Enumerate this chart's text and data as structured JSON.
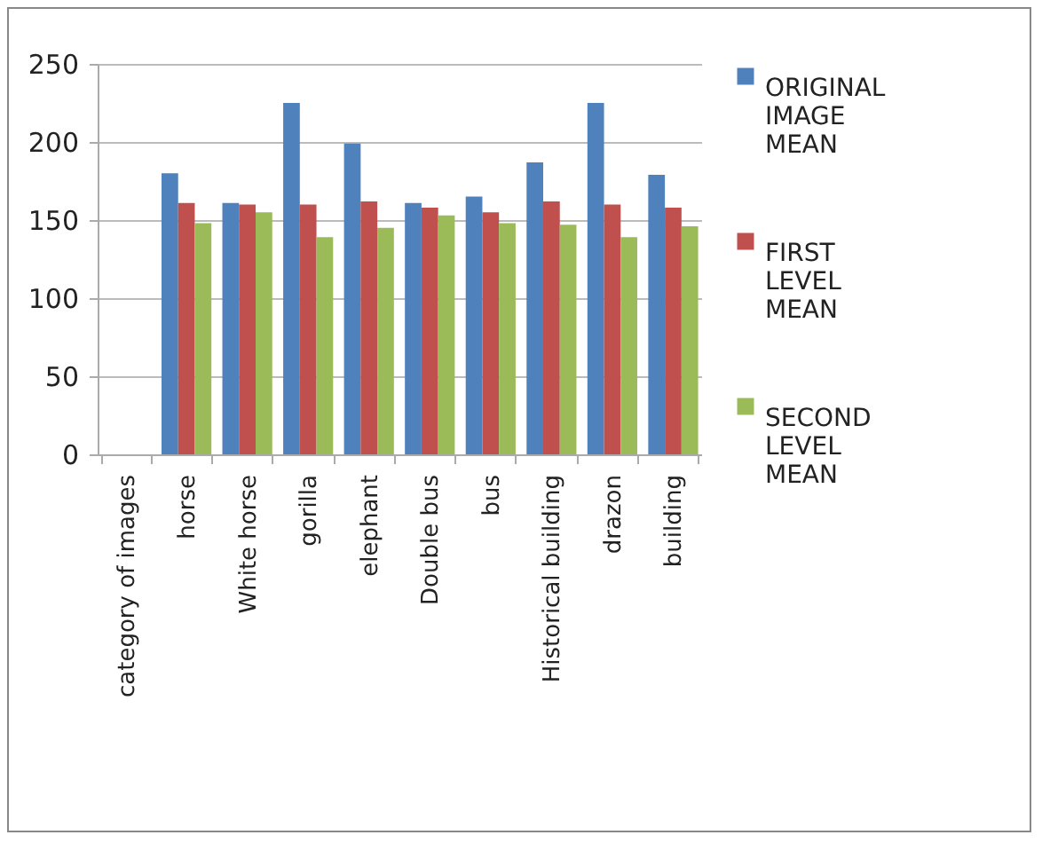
{
  "chart_data": {
    "type": "bar",
    "categories": [
      "category of images",
      "horse",
      "White horse",
      "gorilla",
      "elephant",
      "Double bus",
      "bus",
      "Historical building",
      "drazon",
      "building"
    ],
    "series": [
      {
        "name": "ORIGINAL IMAGE MEAN",
        "color": "#4f81bd",
        "values": [
          null,
          180,
          161,
          225,
          199,
          161,
          165,
          187,
          225,
          179
        ]
      },
      {
        "name": "FIRST LEVEL MEAN",
        "color": "#c0504d",
        "values": [
          null,
          161,
          160,
          160,
          162,
          158,
          155,
          162,
          160,
          158
        ]
      },
      {
        "name": "SECOND LEVEL MEAN",
        "color": "#9bbb59",
        "values": [
          null,
          148,
          155,
          139,
          145,
          153,
          148,
          147,
          139,
          146
        ]
      }
    ],
    "ylim": [
      0,
      250
    ],
    "yticks": [
      0,
      50,
      100,
      150,
      200,
      250
    ],
    "grid": "y",
    "legend": "right"
  }
}
